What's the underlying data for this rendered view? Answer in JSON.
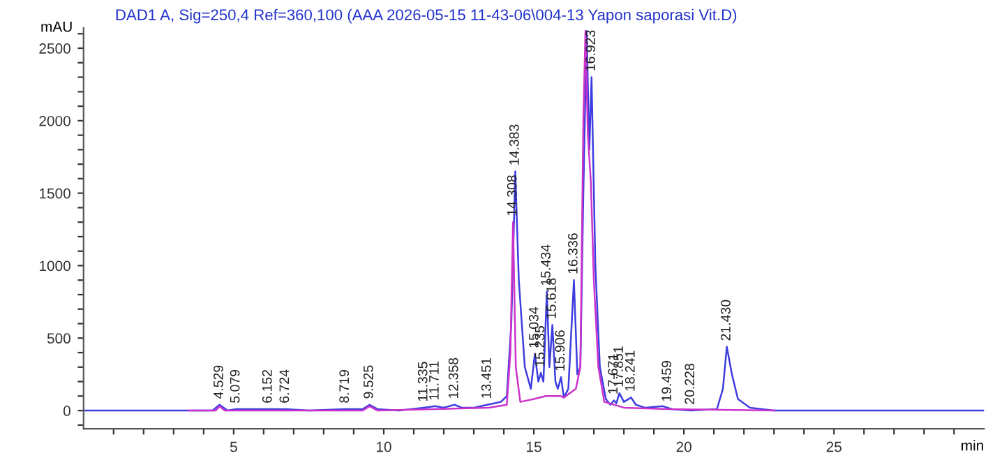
{
  "chart_data": {
    "type": "line",
    "title": "DAD1 A, Sig=250,4 Ref=360,100 (AAA 2026-05-15 11-43-06\\004-13 Yapon saporasi Vit.D)",
    "xlabel": "min",
    "ylabel": "mAU",
    "xlim": [
      0,
      30
    ],
    "ylim": [
      -125,
      2640
    ],
    "xticks": [
      {
        "value": 1,
        "label": null
      },
      {
        "value": 2,
        "label": null
      },
      {
        "value": 3,
        "label": null
      },
      {
        "value": 4,
        "label": null
      },
      5,
      {
        "value": 6,
        "label": null
      },
      {
        "value": 7,
        "label": null
      },
      {
        "value": 8,
        "label": null
      },
      {
        "value": 9,
        "label": null
      },
      10,
      {
        "value": 11,
        "label": null
      },
      {
        "value": 12,
        "label": null
      },
      {
        "value": 13,
        "label": null
      },
      {
        "value": 14,
        "label": null
      },
      15,
      {
        "value": 16,
        "label": null
      },
      {
        "value": 17,
        "label": null
      },
      {
        "value": 18,
        "label": null
      },
      {
        "value": 19,
        "label": null
      },
      20,
      {
        "value": 21,
        "label": null
      },
      {
        "value": 22,
        "label": null
      },
      {
        "value": 23,
        "label": null
      },
      {
        "value": 24,
        "label": null
      },
      25,
      {
        "value": 26,
        "label": null
      },
      {
        "value": 27,
        "label": null
      },
      {
        "value": 28,
        "label": null
      },
      {
        "value": 29,
        "label": null
      }
    ],
    "yticks": [
      {
        "value": -100,
        "label": null
      },
      0,
      {
        "value": 100,
        "label": null
      },
      {
        "value": 200,
        "label": null
      },
      {
        "value": 300,
        "label": null
      },
      {
        "value": 400,
        "label": null
      },
      500,
      {
        "value": 600,
        "label": null
      },
      {
        "value": 700,
        "label": null
      },
      {
        "value": 800,
        "label": null
      },
      {
        "value": 900,
        "label": null
      },
      1000,
      {
        "value": 1100,
        "label": null
      },
      {
        "value": 1200,
        "label": null
      },
      {
        "value": 1300,
        "label": null
      },
      {
        "value": 1400,
        "label": null
      },
      1500,
      {
        "value": 1600,
        "label": null
      },
      {
        "value": 1700,
        "label": null
      },
      {
        "value": 1800,
        "label": null
      },
      {
        "value": 1900,
        "label": null
      },
      2000,
      {
        "value": 2100,
        "label": null
      },
      {
        "value": 2200,
        "label": null
      },
      {
        "value": 2300,
        "label": null
      },
      {
        "value": 2400,
        "label": null
      },
      2500,
      {
        "value": 2600,
        "label": null
      }
    ],
    "grid": false,
    "legend": false,
    "marker": "none",
    "line_style": "solid",
    "series": [
      {
        "color": "#3d3de0",
        "x": [
          0,
          3.5,
          4.3,
          4.529,
          4.8,
          5.079,
          6.152,
          6.724,
          7.5,
          8.719,
          9.3,
          9.525,
          9.8,
          10.5,
          11.335,
          11.711,
          12.0,
          12.358,
          12.6,
          13.0,
          13.451,
          13.9,
          14.1,
          14.25,
          14.383,
          14.5,
          14.7,
          14.9,
          15.034,
          15.15,
          15.235,
          15.32,
          15.434,
          15.52,
          15.618,
          15.72,
          15.8,
          15.906,
          16.0,
          16.15,
          16.336,
          16.45,
          16.55,
          16.65,
          16.76,
          16.85,
          16.923,
          17.05,
          17.2,
          17.4,
          17.55,
          17.671,
          17.75,
          17.851,
          18.0,
          18.241,
          18.4,
          18.7,
          19.3,
          19.6,
          20.228,
          21.1,
          21.3,
          21.43,
          21.6,
          21.8,
          22.2,
          23,
          30
        ],
        "values": [
          0,
          0,
          0,
          40,
          0,
          10,
          10,
          10,
          0,
          10,
          10,
          40,
          10,
          0,
          20,
          30,
          20,
          40,
          20,
          20,
          40,
          60,
          100,
          600,
          1650,
          900,
          300,
          150,
          390,
          200,
          260,
          200,
          820,
          300,
          590,
          200,
          150,
          230,
          90,
          150,
          900,
          250,
          300,
          1500,
          2620,
          1800,
          2300,
          1000,
          300,
          80,
          40,
          70,
          50,
          120,
          60,
          90,
          40,
          20,
          30,
          10,
          0,
          10,
          150,
          440,
          250,
          80,
          20,
          0,
          0
        ]
      },
      {
        "color": "#cc33cc",
        "x": [
          3.5,
          4.4,
          4.529,
          4.7,
          9.3,
          9.525,
          9.8,
          13.5,
          14.1,
          14.22,
          14.308,
          14.4,
          14.55,
          15.0,
          15.4,
          15.9,
          16.0,
          16.4,
          16.55,
          16.65,
          16.72,
          16.8,
          16.9,
          17.0,
          17.15,
          17.35,
          18.0,
          19.5,
          23
        ],
        "values": [
          0,
          0,
          30,
          0,
          0,
          30,
          0,
          20,
          40,
          400,
          1300,
          300,
          60,
          80,
          100,
          100,
          90,
          150,
          300,
          2000,
          2620,
          1900,
          1580,
          900,
          300,
          60,
          20,
          10,
          0
        ]
      }
    ],
    "annotations": [
      {
        "text": "4.529",
        "x": 4.529,
        "y": 40
      },
      {
        "text": "5.079",
        "x": 5.079,
        "y": 10
      },
      {
        "text": "6.152",
        "x": 6.152,
        "y": 10
      },
      {
        "text": "6.724",
        "x": 6.724,
        "y": 10
      },
      {
        "text": "8.719",
        "x": 8.719,
        "y": 10
      },
      {
        "text": "9.525",
        "x": 9.525,
        "y": 40
      },
      {
        "text": "11.335",
        "x": 11.335,
        "y": 20
      },
      {
        "text": "11.711",
        "x": 11.711,
        "y": 30
      },
      {
        "text": "12.358",
        "x": 12.358,
        "y": 40
      },
      {
        "text": "13.451",
        "x": 13.451,
        "y": 40
      },
      {
        "text": "14.308",
        "x": 14.308,
        "y": 1300
      },
      {
        "text": "14.383",
        "x": 14.383,
        "y": 1650
      },
      {
        "text": "15.034",
        "x": 15.034,
        "y": 390
      },
      {
        "text": "15.235",
        "x": 15.235,
        "y": 260
      },
      {
        "text": "15.434",
        "x": 15.434,
        "y": 820
      },
      {
        "text": "15.618",
        "x": 15.618,
        "y": 590
      },
      {
        "text": "15.906",
        "x": 15.906,
        "y": 230
      },
      {
        "text": "16.336",
        "x": 16.336,
        "y": 900
      },
      {
        "text": "16.923",
        "x": 16.923,
        "y": 2300
      },
      {
        "text": "17.671",
        "x": 17.671,
        "y": 70
      },
      {
        "text": "17.851",
        "x": 17.851,
        "y": 120
      },
      {
        "text": "18.241",
        "x": 18.241,
        "y": 90
      },
      {
        "text": "19.459",
        "x": 19.459,
        "y": 20
      },
      {
        "text": "20.228",
        "x": 20.228,
        "y": 0
      },
      {
        "text": "21.430",
        "x": 21.43,
        "y": 440
      }
    ]
  }
}
